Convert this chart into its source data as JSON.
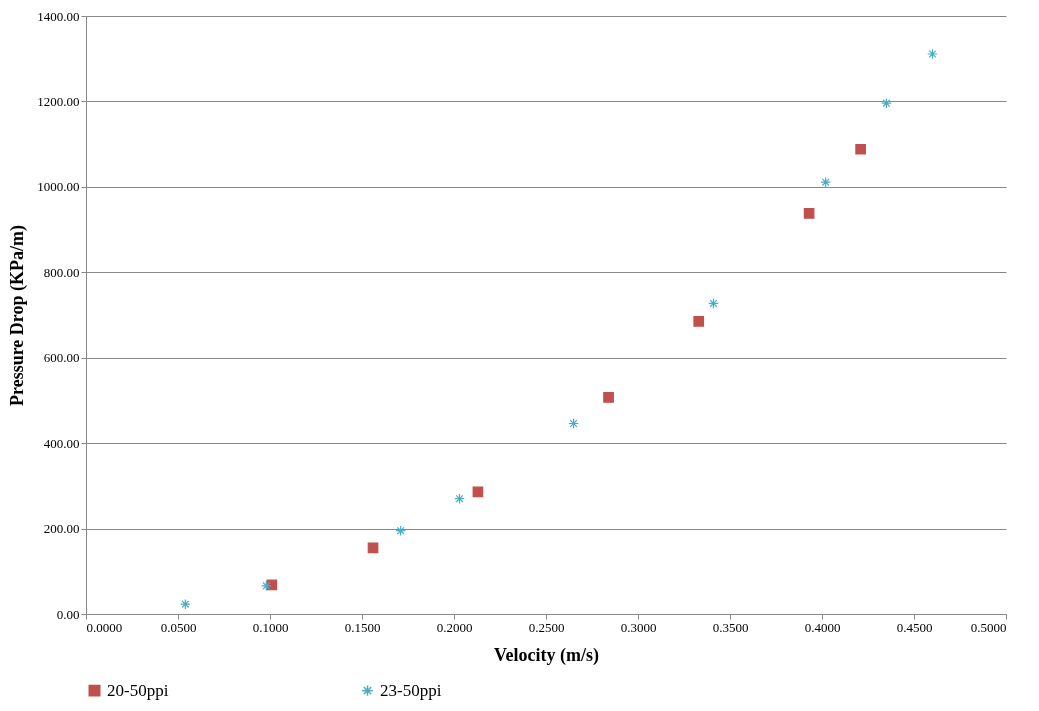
{
  "chart_data": {
    "type": "scatter",
    "xlabel": "Velocity (m/s)",
    "ylabel": "Pressure Drop (KPa/m)",
    "series": [
      {
        "name": "20-50ppi",
        "color": "#c0504d",
        "marker": "square",
        "x": [
          0.101,
          0.156,
          0.213,
          0.284,
          0.333,
          0.393,
          0.421
        ],
        "values": [
          68,
          155,
          286,
          507,
          685,
          938,
          1088
        ]
      },
      {
        "name": "23-50ppi",
        "color": "#4bacc6",
        "marker": "cross",
        "x": [
          0.054,
          0.098,
          0.171,
          0.203,
          0.265,
          0.341,
          0.402,
          0.435,
          0.46
        ],
        "values": [
          23,
          66,
          195,
          270,
          446,
          727,
          1011,
          1196,
          1311
        ]
      }
    ],
    "xlim": [
      0,
      0.5
    ],
    "xticks": [
      {
        "value": 0,
        "label": "0.0000"
      },
      {
        "value": 0.05,
        "label": "0.0500"
      },
      {
        "value": 0.1,
        "label": "0.1000"
      },
      {
        "value": 0.15,
        "label": "0.1500"
      },
      {
        "value": 0.2,
        "label": "0.2000"
      },
      {
        "value": 0.25,
        "label": "0.2500"
      },
      {
        "value": 0.3,
        "label": "0.3000"
      },
      {
        "value": 0.35,
        "label": "0.3500"
      },
      {
        "value": 0.4,
        "label": "0.4000"
      },
      {
        "value": 0.45,
        "label": "0.4500"
      },
      {
        "value": 0.5,
        "label": "0.5000"
      }
    ],
    "ylim": [
      0,
      1400
    ],
    "yticks": [
      {
        "value": 0,
        "label": "0.00"
      },
      {
        "value": 200,
        "label": "200.00"
      },
      {
        "value": 400,
        "label": "400.00"
      },
      {
        "value": 600,
        "label": "600.00"
      },
      {
        "value": 800,
        "label": "800.00"
      },
      {
        "value": 1000,
        "label": "1000.00"
      },
      {
        "value": 1200,
        "label": "1200.00"
      },
      {
        "value": 1400,
        "label": "1400.00"
      }
    ],
    "grid": "y",
    "legend": "bottom"
  }
}
